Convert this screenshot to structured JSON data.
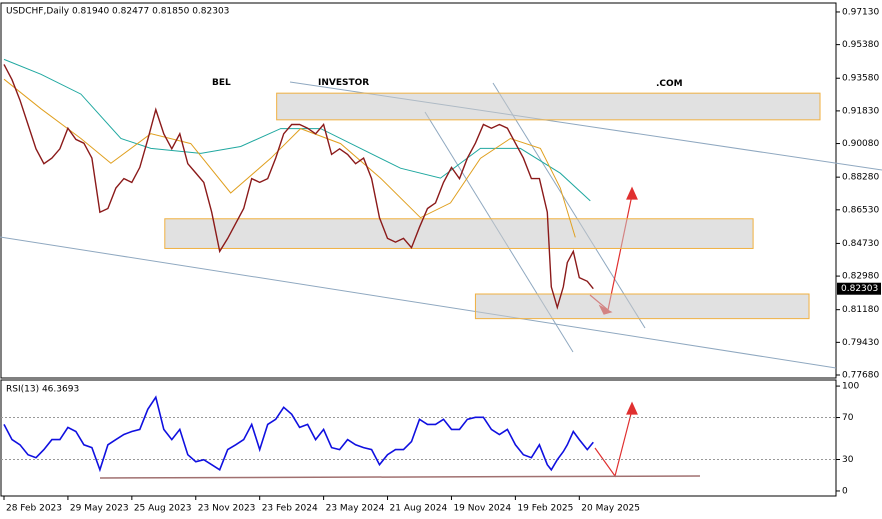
{
  "chart_data": {
    "type": "line",
    "title": "USDCHF,Daily  0.81940 0.82477 0.81850 0.82303",
    "watermark": [
      "BEL",
      "INVESTOR",
      ".COM"
    ],
    "last_price": {
      "value": 0.82303,
      "label": "0.82303"
    },
    "x": [
      0,
      8,
      16,
      24,
      32,
      40,
      48,
      56,
      64,
      72,
      80,
      88,
      96,
      104,
      112,
      120,
      128,
      136,
      144,
      152,
      160,
      168,
      176,
      184,
      192,
      200,
      208,
      216,
      224,
      232,
      240,
      248,
      256,
      264,
      272,
      280,
      288,
      296,
      304,
      312,
      320,
      328,
      336,
      344,
      352,
      360,
      368,
      376,
      384,
      392,
      400,
      408,
      416,
      424,
      432,
      440,
      448,
      456,
      464,
      472,
      480,
      488,
      496,
      504,
      512,
      520,
      528,
      536,
      544,
      548,
      554,
      560,
      564,
      570,
      576,
      584,
      590
    ],
    "xlim": [
      -3,
      833
    ],
    "xticks": [
      {
        "value": 0,
        "label": "28 Feb 2023"
      },
      {
        "value": 64,
        "label": "29 May 2023"
      },
      {
        "value": 128,
        "label": "25 Aug 2023"
      },
      {
        "value": 192,
        "label": "23 Nov 2023"
      },
      {
        "value": 256,
        "label": "23 Feb 2024"
      },
      {
        "value": 320,
        "label": "23 May 2024"
      },
      {
        "value": 384,
        "label": "21 Aug 2024"
      },
      {
        "value": 448,
        "label": "19 Nov 2024"
      },
      {
        "value": 512,
        "label": "19 Feb 2025"
      },
      {
        "value": 576,
        "label": "20 May 2025"
      }
    ],
    "ylim": [
      0.7752,
      0.9761
    ],
    "yticks": [
      {
        "value": 0.9713,
        "label": "0.97130"
      },
      {
        "value": 0.9538,
        "label": "0.95380"
      },
      {
        "value": 0.9358,
        "label": "0.93580"
      },
      {
        "value": 0.9183,
        "label": "0.91830"
      },
      {
        "value": 0.9008,
        "label": "0.90080"
      },
      {
        "value": 0.8828,
        "label": "0.88280"
      },
      {
        "value": 0.8653,
        "label": "0.86530"
      },
      {
        "value": 0.8473,
        "label": "0.84730"
      },
      {
        "value": 0.8298,
        "label": "0.82980"
      },
      {
        "value": 0.8118,
        "label": "0.81180"
      },
      {
        "value": 0.7943,
        "label": "0.79430"
      },
      {
        "value": 0.7768,
        "label": "0.77680"
      }
    ],
    "series": [
      {
        "name": "USDCHF",
        "color": "#8b1a1a",
        "values": [
          0.9432,
          0.935,
          0.924,
          0.911,
          0.898,
          0.89,
          0.893,
          0.898,
          0.909,
          0.903,
          0.901,
          0.893,
          0.864,
          0.866,
          0.877,
          0.882,
          0.88,
          0.888,
          0.903,
          0.919,
          0.906,
          0.898,
          0.906,
          0.89,
          0.885,
          0.88,
          0.864,
          0.843,
          0.85,
          0.858,
          0.866,
          0.882,
          0.88,
          0.882,
          0.893,
          0.906,
          0.911,
          0.911,
          0.909,
          0.906,
          0.911,
          0.895,
          0.898,
          0.895,
          0.89,
          0.893,
          0.882,
          0.861,
          0.85,
          0.848,
          0.85,
          0.845,
          0.856,
          0.866,
          0.869,
          0.88,
          0.888,
          0.882,
          0.893,
          0.901,
          0.911,
          0.909,
          0.911,
          0.909,
          0.901,
          0.893,
          0.882,
          0.882,
          0.864,
          0.824,
          0.813,
          0.824,
          0.837,
          0.843,
          0.829,
          0.827,
          0.82303
        ]
      }
    ],
    "moving_averages": [
      {
        "color": "#20a8a0",
        "x": [
          0,
          37,
          77,
          117,
          147,
          197,
          237,
          277,
          317,
          357,
          397,
          437,
          477,
          517,
          557,
          587
        ],
        "values": [
          0.9459,
          0.9379,
          0.9273,
          0.9035,
          0.8982,
          0.8955,
          0.8992,
          0.9088,
          0.9088,
          0.8982,
          0.8876,
          0.8823,
          0.8982,
          0.8982,
          0.8849,
          0.8701
        ]
      },
      {
        "color": "#e0a020",
        "x": [
          0,
          37,
          77,
          107,
          147,
          187,
          227,
          267,
          297,
          337,
          377,
          417,
          447,
          477,
          507,
          537,
          557,
          572
        ],
        "values": [
          0.9353,
          0.9194,
          0.9035,
          0.8902,
          0.9061,
          0.9008,
          0.8743,
          0.8929,
          0.9088,
          0.9008,
          0.8823,
          0.8611,
          0.869,
          0.8929,
          0.9035,
          0.8982,
          0.877,
          0.8505
        ]
      }
    ],
    "zones": [
      {
        "x": [
          273,
          817
        ],
        "y": [
          0.9135,
          0.9278
        ]
      },
      {
        "x": [
          161,
          750
        ],
        "y": [
          0.8446,
          0.8605
        ]
      },
      {
        "x": [
          472,
          806
        ],
        "y": [
          0.807,
          0.8202
        ]
      }
    ],
    "rsi": {
      "label": "RSI(13) 46.3693",
      "color": "#1010e0",
      "ylim": [
        -4.8,
        105.8
      ],
      "yticks": [
        100,
        70,
        30,
        0
      ],
      "levels": [
        70,
        30
      ],
      "values": [
        63.5,
        49,
        44,
        34.6,
        31.7,
        39.4,
        49,
        49,
        60.6,
        56.7,
        44,
        41.3,
        20.2,
        44,
        49,
        53.8,
        56.7,
        58.7,
        77.9,
        89.4,
        58.7,
        49,
        58.7,
        34.6,
        27.9,
        29.8,
        25,
        20.2,
        39.4,
        44,
        49,
        63.5,
        39.4,
        63.5,
        68.3,
        79.8,
        73.1,
        60.6,
        63.5,
        49,
        58.7,
        41.3,
        39.4,
        49,
        44,
        41.3,
        39.4,
        25,
        34.6,
        39.4,
        39.4,
        47.1,
        68.3,
        63.5,
        63.5,
        68.3,
        58.7,
        58.7,
        68.3,
        70.2,
        70.2,
        58.7,
        53.8,
        58.7,
        44,
        34.6,
        31.7,
        44,
        25,
        20.2,
        29.8,
        37.5,
        44,
        56.7,
        49,
        39.4,
        46.37
      ]
    }
  }
}
